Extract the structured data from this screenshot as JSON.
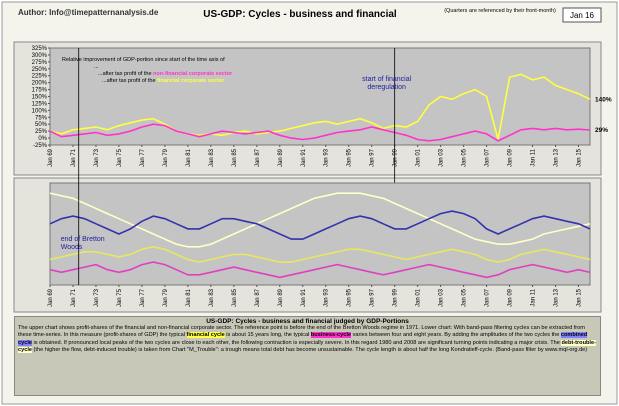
{
  "header": {
    "author": "Author: Info@timepatternanalysis.de",
    "title": "US-GDP: Cycles - business and financial",
    "note": "(Quarters are referenced by their front-month)",
    "date": "Jan 16"
  },
  "chart_data": [
    {
      "type": "line",
      "legend_lines": [
        [
          {
            "text": "Relative improvement of GDP-portion since start of the time axis of"
          }
        ],
        [
          {
            "text": "..."
          }
        ],
        [
          {
            "text": "...after tax profit of the "
          },
          {
            "text": "non-financial corporate sector",
            "color": "#ff33cc"
          }
        ],
        [
          {
            "text": "...after tax profit of the "
          },
          {
            "text": "financial corporate sector",
            "color": "#ffff40"
          }
        ]
      ],
      "annotations": [
        {
          "text": "start of financial deregulation",
          "x": 1999
        }
      ],
      "x": [
        1969,
        1970,
        1971,
        1972,
        1973,
        1974,
        1975,
        1976,
        1977,
        1978,
        1979,
        1980,
        1981,
        1982,
        1983,
        1984,
        1985,
        1986,
        1987,
        1988,
        1989,
        1990,
        1991,
        1992,
        1993,
        1994,
        1995,
        1996,
        1997,
        1998,
        1999,
        2000,
        2001,
        2002,
        2003,
        2004,
        2005,
        2006,
        2007,
        2008,
        2009,
        2010,
        2011,
        2012,
        2013,
        2014,
        2015,
        2016
      ],
      "xlim": [
        1969,
        2016
      ],
      "xticks": [
        {
          "value": 1969,
          "label": "Jan 69"
        },
        {
          "value": 1971,
          "label": "Jan 71"
        },
        {
          "value": 1973,
          "label": "Jan 73"
        },
        {
          "value": 1975,
          "label": "Jan 75"
        },
        {
          "value": 1977,
          "label": "Jan 77"
        },
        {
          "value": 1979,
          "label": "Jan 79"
        },
        {
          "value": 1981,
          "label": "Jan 81"
        },
        {
          "value": 1983,
          "label": "Jan 83"
        },
        {
          "value": 1985,
          "label": "Jan 85"
        },
        {
          "value": 1987,
          "label": "Jan 87"
        },
        {
          "value": 1989,
          "label": "Jan 89"
        },
        {
          "value": 1991,
          "label": "Jan 91"
        },
        {
          "value": 1993,
          "label": "Jan 93"
        },
        {
          "value": 1995,
          "label": "Jan 95"
        },
        {
          "value": 1997,
          "label": "Jan 97"
        },
        {
          "value": 1999,
          "label": "Jan 99"
        },
        {
          "value": 2001,
          "label": "Jan 01"
        },
        {
          "value": 2003,
          "label": "Jan 03"
        },
        {
          "value": 2005,
          "label": "Jan 05"
        },
        {
          "value": 2007,
          "label": "Jan 07"
        },
        {
          "value": 2009,
          "label": "Jan 09"
        },
        {
          "value": 2011,
          "label": "Jan 11"
        },
        {
          "value": 2013,
          "label": "Jan 13"
        },
        {
          "value": 2015,
          "label": "Jan 15"
        }
      ],
      "ylim": [
        -25,
        325
      ],
      "yticks": [
        {
          "value": 325,
          "label": "325%"
        },
        {
          "value": 300,
          "label": "300%"
        },
        {
          "value": 275,
          "label": "275%"
        },
        {
          "value": 250,
          "label": "250%"
        },
        {
          "value": 225,
          "label": "225%"
        },
        {
          "value": 200,
          "label": "200%"
        },
        {
          "value": 175,
          "label": "175%"
        },
        {
          "value": 150,
          "label": "150%"
        },
        {
          "value": 125,
          "label": "125%"
        },
        {
          "value": 100,
          "label": "100%"
        },
        {
          "value": 75,
          "label": "75%"
        },
        {
          "value": 50,
          "label": "50%"
        },
        {
          "value": 25,
          "label": "25%"
        },
        {
          "value": 0,
          "label": "0%"
        },
        {
          "value": -25,
          "label": "-25%"
        }
      ],
      "series": [
        {
          "color": "#ffff40",
          "end_label": "140%",
          "values": [
            25,
            15,
            30,
            35,
            40,
            30,
            45,
            55,
            65,
            70,
            50,
            25,
            15,
            10,
            15,
            10,
            20,
            25,
            15,
            20,
            25,
            35,
            45,
            55,
            60,
            50,
            60,
            70,
            55,
            35,
            45,
            40,
            60,
            120,
            150,
            140,
            160,
            175,
            150,
            -5,
            220,
            230,
            210,
            220,
            190,
            175,
            160,
            140
          ]
        },
        {
          "color": "#ff33cc",
          "end_label": "29%",
          "values": [
            25,
            5,
            10,
            15,
            20,
            10,
            15,
            25,
            40,
            50,
            45,
            25,
            15,
            5,
            15,
            25,
            20,
            15,
            20,
            25,
            10,
            0,
            -5,
            0,
            10,
            20,
            25,
            30,
            40,
            30,
            20,
            10,
            -5,
            -10,
            -5,
            5,
            15,
            25,
            15,
            -10,
            10,
            30,
            35,
            30,
            35,
            30,
            32,
            29
          ]
        }
      ]
    },
    {
      "type": "line",
      "annotations": [
        {
          "text": "end of Bretton Woods",
          "x": 1971.5
        }
      ],
      "x": [
        1969,
        1970,
        1971,
        1972,
        1973,
        1974,
        1975,
        1976,
        1977,
        1978,
        1979,
        1980,
        1981,
        1982,
        1983,
        1984,
        1985,
        1986,
        1987,
        1988,
        1989,
        1990,
        1991,
        1992,
        1993,
        1994,
        1995,
        1996,
        1997,
        1998,
        1999,
        2000,
        2001,
        2002,
        2003,
        2004,
        2005,
        2006,
        2007,
        2008,
        2009,
        2010,
        2011,
        2012,
        2013,
        2014,
        2015,
        2016
      ],
      "xlim": [
        1969,
        2016
      ],
      "xticks": [
        {
          "value": 1969,
          "label": "Jan 69"
        },
        {
          "value": 1971,
          "label": "Jan 71"
        },
        {
          "value": 1973,
          "label": "Jan 73"
        },
        {
          "value": 1975,
          "label": "Jan 75"
        },
        {
          "value": 1977,
          "label": "Jan 77"
        },
        {
          "value": 1979,
          "label": "Jan 79"
        },
        {
          "value": 1981,
          "label": "Jan 81"
        },
        {
          "value": 1983,
          "label": "Jan 83"
        },
        {
          "value": 1985,
          "label": "Jan 85"
        },
        {
          "value": 1987,
          "label": "Jan 87"
        },
        {
          "value": 1989,
          "label": "Jan 89"
        },
        {
          "value": 1991,
          "label": "Jan 91"
        },
        {
          "value": 1993,
          "label": "Jan 93"
        },
        {
          "value": 1995,
          "label": "Jan 95"
        },
        {
          "value": 1997,
          "label": "Jan 97"
        },
        {
          "value": 1999,
          "label": "Jan 99"
        },
        {
          "value": 2001,
          "label": "Jan 01"
        },
        {
          "value": 2003,
          "label": "Jan 03"
        },
        {
          "value": 2005,
          "label": "Jan 05"
        },
        {
          "value": 2007,
          "label": "Jan 07"
        },
        {
          "value": 2009,
          "label": "Jan 09"
        },
        {
          "value": 2011,
          "label": "Jan 11"
        },
        {
          "value": 2013,
          "label": "Jan 13"
        },
        {
          "value": 2015,
          "label": "Jan 15"
        }
      ],
      "ylim": [
        -1,
        1
      ],
      "series": [
        {
          "color": "#ffffc8",
          "values": [
            0.8,
            0.75,
            0.7,
            0.6,
            0.5,
            0.4,
            0.3,
            0.2,
            0.1,
            0.0,
            -0.1,
            -0.2,
            -0.25,
            -0.25,
            -0.2,
            -0.1,
            0.0,
            0.1,
            0.2,
            0.3,
            0.4,
            0.5,
            0.6,
            0.7,
            0.75,
            0.8,
            0.8,
            0.8,
            0.75,
            0.7,
            0.6,
            0.5,
            0.4,
            0.3,
            0.2,
            0.1,
            0.0,
            -0.1,
            -0.15,
            -0.2,
            -0.2,
            -0.15,
            -0.1,
            0.0,
            0.05,
            0.1,
            0.15,
            0.2
          ]
        },
        {
          "color": "#3333aa",
          "values": [
            0.2,
            0.3,
            0.35,
            0.3,
            0.2,
            0.1,
            0.0,
            0.1,
            0.25,
            0.35,
            0.3,
            0.2,
            0.1,
            0.1,
            0.2,
            0.3,
            0.3,
            0.25,
            0.2,
            0.1,
            0.0,
            -0.1,
            -0.1,
            0.0,
            0.1,
            0.2,
            0.3,
            0.35,
            0.3,
            0.2,
            0.1,
            0.1,
            0.2,
            0.3,
            0.4,
            0.45,
            0.4,
            0.3,
            0.1,
            0.0,
            0.1,
            0.2,
            0.3,
            0.35,
            0.3,
            0.25,
            0.2,
            0.1
          ]
        },
        {
          "color": "#e8e860",
          "values": [
            -0.5,
            -0.45,
            -0.4,
            -0.35,
            -0.35,
            -0.4,
            -0.45,
            -0.4,
            -0.3,
            -0.25,
            -0.3,
            -0.4,
            -0.5,
            -0.55,
            -0.5,
            -0.45,
            -0.4,
            -0.4,
            -0.45,
            -0.5,
            -0.55,
            -0.55,
            -0.5,
            -0.45,
            -0.4,
            -0.35,
            -0.3,
            -0.3,
            -0.35,
            -0.4,
            -0.45,
            -0.5,
            -0.45,
            -0.4,
            -0.35,
            -0.3,
            -0.35,
            -0.4,
            -0.5,
            -0.55,
            -0.5,
            -0.4,
            -0.35,
            -0.3,
            -0.35,
            -0.4,
            -0.45,
            -0.5
          ]
        },
        {
          "color": "#e040c0",
          "values": [
            -0.7,
            -0.75,
            -0.7,
            -0.65,
            -0.6,
            -0.7,
            -0.75,
            -0.7,
            -0.6,
            -0.55,
            -0.6,
            -0.7,
            -0.8,
            -0.8,
            -0.75,
            -0.7,
            -0.65,
            -0.7,
            -0.75,
            -0.8,
            -0.85,
            -0.8,
            -0.75,
            -0.7,
            -0.65,
            -0.6,
            -0.65,
            -0.7,
            -0.75,
            -0.8,
            -0.75,
            -0.7,
            -0.65,
            -0.6,
            -0.65,
            -0.7,
            -0.75,
            -0.8,
            -0.85,
            -0.8,
            -0.7,
            -0.65,
            -0.6,
            -0.65,
            -0.7,
            -0.75,
            -0.7,
            -0.75
          ]
        }
      ]
    }
  ],
  "footer": {
    "title": "US-GDP: Cycles - business and financial judged by GDP-Portions",
    "segments": [
      {
        "text": "The upper chart shows profit-shares of the financial and non-financial corporate sector. The reference point is before the end of the Bretton Woods regime in 1971. Lower chart: With band-pass filtering cycles can be extracted from these time-series. In this measure (profit-shares of GDP) the typical "
      },
      {
        "text": "financial cycle",
        "color": "#ffff40"
      },
      {
        "text": " is about 15 years long, the typical "
      },
      {
        "text": "business-cycle",
        "color": "#ff33cc"
      },
      {
        "text": " varies between four and eight years. By adding the amplitudes of the two cycles the "
      },
      {
        "text": "combined cycle",
        "color": "#8080ff"
      },
      {
        "text": " is obtained. If pronounced local peaks of the two cycles are close to each other, the following contraction is especially severe. In this regard 1980 and 2008 are significant turning points indicating a major crisis. The "
      },
      {
        "text": "debt-trouble-cycle",
        "color": "#ffffc8"
      },
      {
        "text": " (the higher the flow, debt-induced trouble) is taken from Chart \"M_Trouble\": a trough means total debt has become unsustainable. The cycle length is about half the long Kondratieff-cycle.     (Band-pass filter by www.mql-org.de)"
      }
    ]
  }
}
